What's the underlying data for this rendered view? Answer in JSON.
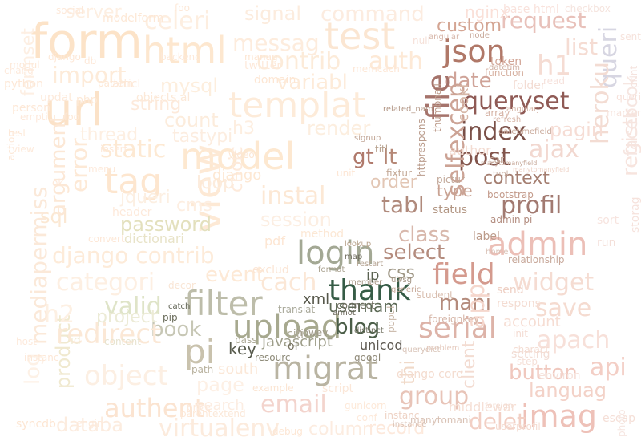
{
  "words": [
    {
      "text": "form",
      "color": "#fce3c8"
    },
    {
      "text": "html",
      "color": "#fde7cf"
    },
    {
      "text": "test",
      "color": "#fbe6d2"
    },
    {
      "text": "url",
      "color": "#fbe2c8"
    },
    {
      "text": "model",
      "color": "#fde8d0"
    },
    {
      "text": "view",
      "color": "#fde9d5"
    },
    {
      "text": "templat",
      "color": "#fdebd9"
    },
    {
      "text": "tag",
      "color": "#fde6cf"
    },
    {
      "text": "static",
      "color": "#fde9d3"
    },
    {
      "text": "import",
      "color": "#fdebd9"
    },
    {
      "text": "mysql",
      "color": "#fdeedd"
    },
    {
      "text": "celeri",
      "color": "#fdeee0"
    },
    {
      "text": "messag",
      "color": "#fdecdd"
    },
    {
      "text": "signal",
      "color": "#fcecde"
    },
    {
      "text": "command",
      "color": "#fcece0"
    },
    {
      "text": "contrib",
      "color": "#fcebd9"
    },
    {
      "text": "auth",
      "color": "#fde9d6"
    },
    {
      "text": "variabl",
      "color": "#fdebd9"
    },
    {
      "text": "count",
      "color": "#fcecdc"
    },
    {
      "text": "render",
      "color": "#fceedf"
    },
    {
      "text": "instal",
      "color": "#fce8d5"
    },
    {
      "text": "session",
      "color": "#fceee2"
    },
    {
      "text": "password",
      "color": "#e3e0bd"
    },
    {
      "text": "dictionari",
      "color": "#e8e3c8"
    },
    {
      "text": "django contrib",
      "color": "#fdebd9"
    },
    {
      "text": "categori",
      "color": "#fdefe2"
    },
    {
      "text": "valid",
      "color": "#dfe4c8"
    },
    {
      "text": "filter",
      "color": "#bdbdaa"
    },
    {
      "text": "event",
      "color": "#fde9d6"
    },
    {
      "text": "cach",
      "color": "#fbe7d6"
    },
    {
      "text": "login",
      "color": "#a3a894"
    },
    {
      "text": "upload",
      "color": "#a7a98f"
    },
    {
      "text": "thank",
      "color": "#365c46"
    },
    {
      "text": "blog",
      "color": "#4b5e48"
    },
    {
      "text": "book",
      "color": "#c7c7b5"
    },
    {
      "text": "pi",
      "color": "#c9c2ad"
    },
    {
      "text": "migrat",
      "color": "#b9b4a2"
    },
    {
      "text": "key",
      "color": "#585b4d"
    },
    {
      "text": "email",
      "color": "#f3d4cd"
    },
    {
      "text": "serial",
      "color": "#ddb3a8"
    },
    {
      "text": "field",
      "color": "#d49a8e"
    },
    {
      "text": "admin",
      "color": "#ecbfb7"
    },
    {
      "text": "json",
      "color": "#b07868"
    },
    {
      "text": "queryset",
      "color": "#8f5a55"
    },
    {
      "text": "index",
      "color": "#7a5048"
    },
    {
      "text": "post",
      "color": "#82544b"
    },
    {
      "text": "date",
      "color": "#cfa398"
    },
    {
      "text": "profil",
      "color": "#a27a71"
    },
    {
      "text": "tabl",
      "color": "#b08a7c"
    },
    {
      "text": "class",
      "color": "#d8b8ac"
    },
    {
      "text": "select",
      "color": "#b48c7e"
    },
    {
      "text": "context",
      "color": "#a47e70"
    },
    {
      "text": "group",
      "color": "#e8c4b8"
    },
    {
      "text": "imag",
      "color": "#eec1b8"
    },
    {
      "text": "request",
      "color": "#e8c1ba"
    },
    {
      "text": "custom",
      "color": "#d4a593"
    },
    {
      "text": "queri",
      "color": "#d7d6e2"
    },
    {
      "text": "file",
      "color": "#a5736b"
    },
    {
      "text": "selfexcep",
      "color": "#cca395"
    },
    {
      "text": "gt",
      "color": "#b07a6c"
    },
    {
      "text": "lt",
      "color": "#b58776"
    },
    {
      "text": "order",
      "color": "#e2c6b4"
    },
    {
      "text": "type",
      "color": "#c9a393"
    },
    {
      "text": "mani",
      "color": "#b48b7c"
    },
    {
      "text": "usernam",
      "color": "#5d6a56"
    },
    {
      "text": "javascript",
      "color": "#9e9e8a"
    },
    {
      "text": "unicod",
      "color": "#5d5850"
    },
    {
      "text": "heroku",
      "color": "#f3dcd3"
    },
    {
      "text": "ajax",
      "color": "#f2d8d0"
    },
    {
      "text": "widget",
      "color": "#f5dcd2"
    },
    {
      "text": "save",
      "color": "#f5dbd0"
    },
    {
      "text": "apach",
      "color": "#f7e0d9"
    },
    {
      "text": "button",
      "color": "#f0c8be"
    },
    {
      "text": "languag",
      "color": "#f3d2c8"
    },
    {
      "text": "api",
      "color": "#f3cec5"
    },
    {
      "text": "app",
      "color": "#f5d7cd"
    },
    {
      "text": "delet",
      "color": "#f2cfc4"
    },
    {
      "text": "h1",
      "color": "#f5dcd3"
    },
    {
      "text": "product",
      "color": "#f0e9cf"
    },
    {
      "text": "object",
      "color": "#fcefe3"
    },
    {
      "text": "page",
      "color": "#fdf0e5"
    },
    {
      "text": "authent",
      "color": "#fbe4d1"
    },
    {
      "text": "virtualenv",
      "color": "#fcebdd"
    },
    {
      "text": "databa",
      "color": "#fcecdf"
    },
    {
      "text": "column",
      "color": "#fcece0"
    },
    {
      "text": "record",
      "color": "#fde9dc"
    },
    {
      "text": "redirect",
      "color": "#fbe8d6"
    },
    {
      "text": "h2",
      "color": "#fdf0e3"
    },
    {
      "text": "project",
      "color": "#ecebd6"
    },
    {
      "text": "sql",
      "color": "#fbe8d3"
    },
    {
      "text": "jqueri",
      "color": "#fcefe2"
    },
    {
      "text": "cms",
      "color": "#fdeee1"
    },
    {
      "text": "choic",
      "color": "#fdeadb"
    },
    {
      "text": "thread",
      "color": "#fdefe2"
    },
    {
      "text": "tastypi",
      "color": "#fcede0"
    },
    {
      "text": "h3",
      "color": "#fdeee0"
    },
    {
      "text": "error",
      "color": "#fde9d6"
    },
    {
      "text": "argument",
      "color": "#fce8d6"
    },
    {
      "text": "mediapermiss",
      "color": "#fbe9d9"
    },
    {
      "text": "log",
      "color": "#fdf1e6"
    },
    {
      "text": "formset",
      "color": "#fdefe3"
    },
    {
      "text": "server",
      "color": "#fdefe2"
    },
    {
      "text": "nginx",
      "color": "#fae0d8"
    },
    {
      "text": "base html",
      "color": "#f9e2dc"
    },
    {
      "text": "list",
      "color": "#f5dcd3"
    },
    {
      "text": "registr",
      "color": "#f7e4de"
    },
    {
      "text": "facebook",
      "color": "#f6e6e1"
    },
    {
      "text": "pagin",
      "color": "#f6ddd5"
    },
    {
      "text": "south",
      "color": "#fbe8d8"
    },
    {
      "text": "account",
      "color": "#f6ddd3"
    },
    {
      "text": "search",
      "color": "#fcede2"
    },
    {
      "text": "thi",
      "color": "#f0d9c8"
    },
    {
      "text": "client",
      "color": "#f3dcd2"
    },
    {
      "text": "middlewar",
      "color": "#f6e0d6"
    },
    {
      "text": "token",
      "color": "#d2a596"
    },
    {
      "text": "function",
      "color": "#d7b2a2"
    },
    {
      "text": "bootstrap",
      "color": "#c39a8a"
    },
    {
      "text": "status",
      "color": "#b29683"
    },
    {
      "text": "label",
      "color": "#bc9b8a"
    },
    {
      "text": "admin pi",
      "color": "#b38d80"
    },
    {
      "text": "ip",
      "color": "#5a6150"
    },
    {
      "text": "css",
      "color": "#a09887"
    },
    {
      "text": "xml",
      "color": "#56574a"
    },
    {
      "text": "loop",
      "color": "#fcecdd"
    },
    {
      "text": "loop",
      "color": "#fcecdd"
    },
    {
      "text": "django",
      "color": "#fde8d3"
    },
    {
      "text": "string",
      "color": "#fdeadb"
    },
    {
      "text": "author",
      "color": "#f3dcd2"
    },
    {
      "text": "setting",
      "color": "#f2ddd5"
    },
    {
      "text": "respons",
      "color": "#f4dcd2"
    },
    {
      "text": "send",
      "color": "#eecfc3"
    },
    {
      "text": "lookup",
      "color": "#b9a48d"
    },
    {
      "text": "catch",
      "color": "#5c5f50"
    },
    {
      "text": "pip",
      "color": "#6b6d5c"
    },
    {
      "text": "resourc",
      "color": "#8d8a78"
    },
    {
      "text": "googl",
      "color": "#8f8978"
    },
    {
      "text": "example",
      "color": "#fbe5d3"
    },
    {
      "text": "script",
      "color": "#fbe7d8"
    },
    {
      "text": "price",
      "color": "#fce8d9"
    },
    {
      "text": "extend",
      "color": "#fbe8d8"
    },
    {
      "text": "path",
      "color": "#b7b09c"
    },
    {
      "text": "decor",
      "color": "#f9e5d4"
    },
    {
      "text": "exclud",
      "color": "#fbe5d4"
    },
    {
      "text": "translat",
      "color": "#a9a99a"
    },
    {
      "text": "connect",
      "color": "#6e6c5e"
    },
    {
      "text": "annot",
      "color": "#6a6659"
    },
    {
      "text": "student",
      "color": "#d8bdae"
    },
    {
      "text": "restart",
      "color": "#b7a695"
    },
    {
      "text": "uwsgi",
      "color": "#9f907f"
    },
    {
      "text": "format",
      "color": "#a8a08e"
    },
    {
      "text": "map",
      "color": "#6e6b5d"
    },
    {
      "text": "distinct",
      "color": "#717160"
    },
    {
      "text": "pass",
      "color": "#aeab98"
    },
    {
      "text": "header",
      "color": "#fde9da"
    },
    {
      "text": "method",
      "color": "#fce8d5"
    },
    {
      "text": "pdf",
      "color": "#fde6d3"
    },
    {
      "text": "foreignkey",
      "color": "#d6b6a8"
    },
    {
      "text": "angular",
      "color": "#d7b7aa"
    },
    {
      "text": "datetim",
      "color": "#d0b0a3"
    },
    {
      "text": "cooki",
      "color": "#d7b8a8"
    },
    {
      "text": "titl",
      "color": "#b7a18e"
    },
    {
      "text": "fixtur",
      "color": "#c4aa98"
    },
    {
      "text": "pictur",
      "color": "#c2a899"
    },
    {
      "text": "refresh",
      "color": "#d6b4a6"
    },
    {
      "text": "array",
      "color": "#d5b2a4"
    },
    {
      "text": "relationship",
      "color": "#c8a99b"
    },
    {
      "text": "home",
      "color": "#d9c1b6"
    },
    {
      "text": "django core",
      "color": "#f4dccf"
    },
    {
      "text": "problem",
      "color": "#e6cbbf"
    },
    {
      "text": "charact",
      "color": "#f4dcd2"
    },
    {
      "text": "escap",
      "color": "#f5dfd7"
    },
    {
      "text": "photo",
      "color": "#f6e6e1"
    },
    {
      "text": "print",
      "color": "#f5e3de"
    },
    {
      "text": "checkbox",
      "color": "#f5e4de"
    },
    {
      "text": "twitter",
      "color": "#fde9da"
    },
    {
      "text": "domain",
      "color": "#fde6d3"
    },
    {
      "text": "video",
      "color": "#fce6d3"
    },
    {
      "text": "modelform",
      "color": "#fde8d6"
    },
    {
      "text": "backend",
      "color": "#fde9d9"
    },
    {
      "text": "social",
      "color": "#fde9da"
    },
    {
      "text": "python",
      "color": "#fde8d7"
    },
    {
      "text": "person",
      "color": "#fde8d7"
    },
    {
      "text": "updat",
      "color": "#fdeadb"
    },
    {
      "text": "php",
      "color": "#fde9d7"
    },
    {
      "text": "articl",
      "color": "#fdeadc"
    },
    {
      "text": "objects al",
      "color": "#fce9d8"
    },
    {
      "text": "manag",
      "color": "#fde6d3"
    },
    {
      "text": "instanc",
      "color": "#eed2c4"
    },
    {
      "text": "car",
      "color": "#c4a89a"
    },
    {
      "text": "folder",
      "color": "#f3dcd3"
    },
    {
      "text": "sort",
      "color": "#f7e4df"
    },
    {
      "text": "run",
      "color": "#f4dfd8"
    },
    {
      "text": "storag",
      "color": "#f6e2dc"
    },
    {
      "text": "conf",
      "color": "#fde9da"
    },
    {
      "text": "howev",
      "color": "#9e9987"
    },
    {
      "text": "gunicorn",
      "color": "#fde9d9"
    },
    {
      "text": "debug",
      "color": "#fde7d5"
    },
    {
      "text": "engin",
      "color": "#fdeadb"
    },
    {
      "text": "syncdb",
      "color": "#fde6d3"
    },
    {
      "text": "host",
      "color": "#fdeadc"
    },
    {
      "text": "id",
      "color": "#f0ead4"
    },
    {
      "text": "content",
      "color": "#e7e3cf"
    },
    {
      "text": "menu",
      "color": "#fde9da"
    },
    {
      "text": "convert",
      "color": "#fde7d6"
    },
    {
      "text": "chang",
      "color": "#fdeadc"
    },
    {
      "text": "empti",
      "color": "#fde9db"
    },
    {
      "text": "null",
      "color": "#f5e0d8"
    },
    {
      "text": "node",
      "color": "#c8a99a"
    },
    {
      "text": "tupl",
      "color": "#c6ab9d"
    },
    {
      "text": "memcach",
      "color": "#fde7d6"
    },
    {
      "text": "foo",
      "color": "#fde8d7"
    },
    {
      "text": "pattern",
      "color": "#fde8d6"
    },
    {
      "text": "action",
      "color": "#fce8d8"
    },
    {
      "text": "insert",
      "color": "#fde9da"
    },
    {
      "text": "manytomanyfield",
      "color": "#efd4c8"
    },
    {
      "text": "foreign",
      "color": "#f3dcd2"
    },
    {
      "text": "userprofil",
      "color": "#f4dbd1"
    },
    {
      "text": "init",
      "color": "#f4dcd3"
    },
    {
      "text": "step",
      "color": "#f5e0d8"
    },
    {
      "text": "environ",
      "color": "#f5e1da"
    },
    {
      "text": "querydict",
      "color": "#d9c4b8"
    },
    {
      "text": "popul",
      "color": "#c8b6a6"
    },
    {
      "text": "citi",
      "color": "#aeaa98"
    },
    {
      "text": "ol",
      "color": "#777361"
    },
    {
      "text": "related_nam",
      "color": "#b39786"
    },
    {
      "text": "httprespons",
      "color": "#b99b8b"
    },
    {
      "text": "thumbnail",
      "color": "#bd9c8c"
    },
    {
      "text": "member",
      "color": "#a49482"
    },
    {
      "text": "instance",
      "color": "#d9c1b4"
    },
    {
      "text": "manytomani",
      "color": "#d9c2b5"
    },
    {
      "text": "parent",
      "color": "#fde8d7"
    },
    {
      "text": "unit",
      "color": "#fde6d4"
    },
    {
      "text": "queri",
      "color": "#f6e0d9"
    },
    {
      "text": "marker",
      "color": "#f6e3dc"
    },
    {
      "text": "angularj",
      "color": "#d5b6a8"
    },
    {
      "text": "generic",
      "color": "#c6a898"
    },
    {
      "text": "modul",
      "color": "#fde8d7"
    },
    {
      "text": "signup",
      "color": "#c0a494"
    },
    {
      "text": "read",
      "color": "#f6e1db"
    },
    {
      "text": "datetimefield",
      "color": "#c9a99a"
    },
    {
      "text": "manytomanyfield",
      "color": "#c7a99a"
    },
    {
      "text": "sent",
      "color": "#f6e2db"
    },
    {
      "text": "test",
      "color": "#fde8d7"
    },
    {
      "text": "instanc",
      "color": "#fde8d7"
    },
    {
      "text": "foo",
      "color": "#fde8d6"
    },
    {
      "text": "db",
      "color": "#fde9d9"
    },
    {
      "text": "view",
      "color": "#fdeadb"
    },
    {
      "text": "ok",
      "color": "#fde9da"
    },
    {
      "text": "django",
      "color": "#fde8d7"
    }
  ]
}
